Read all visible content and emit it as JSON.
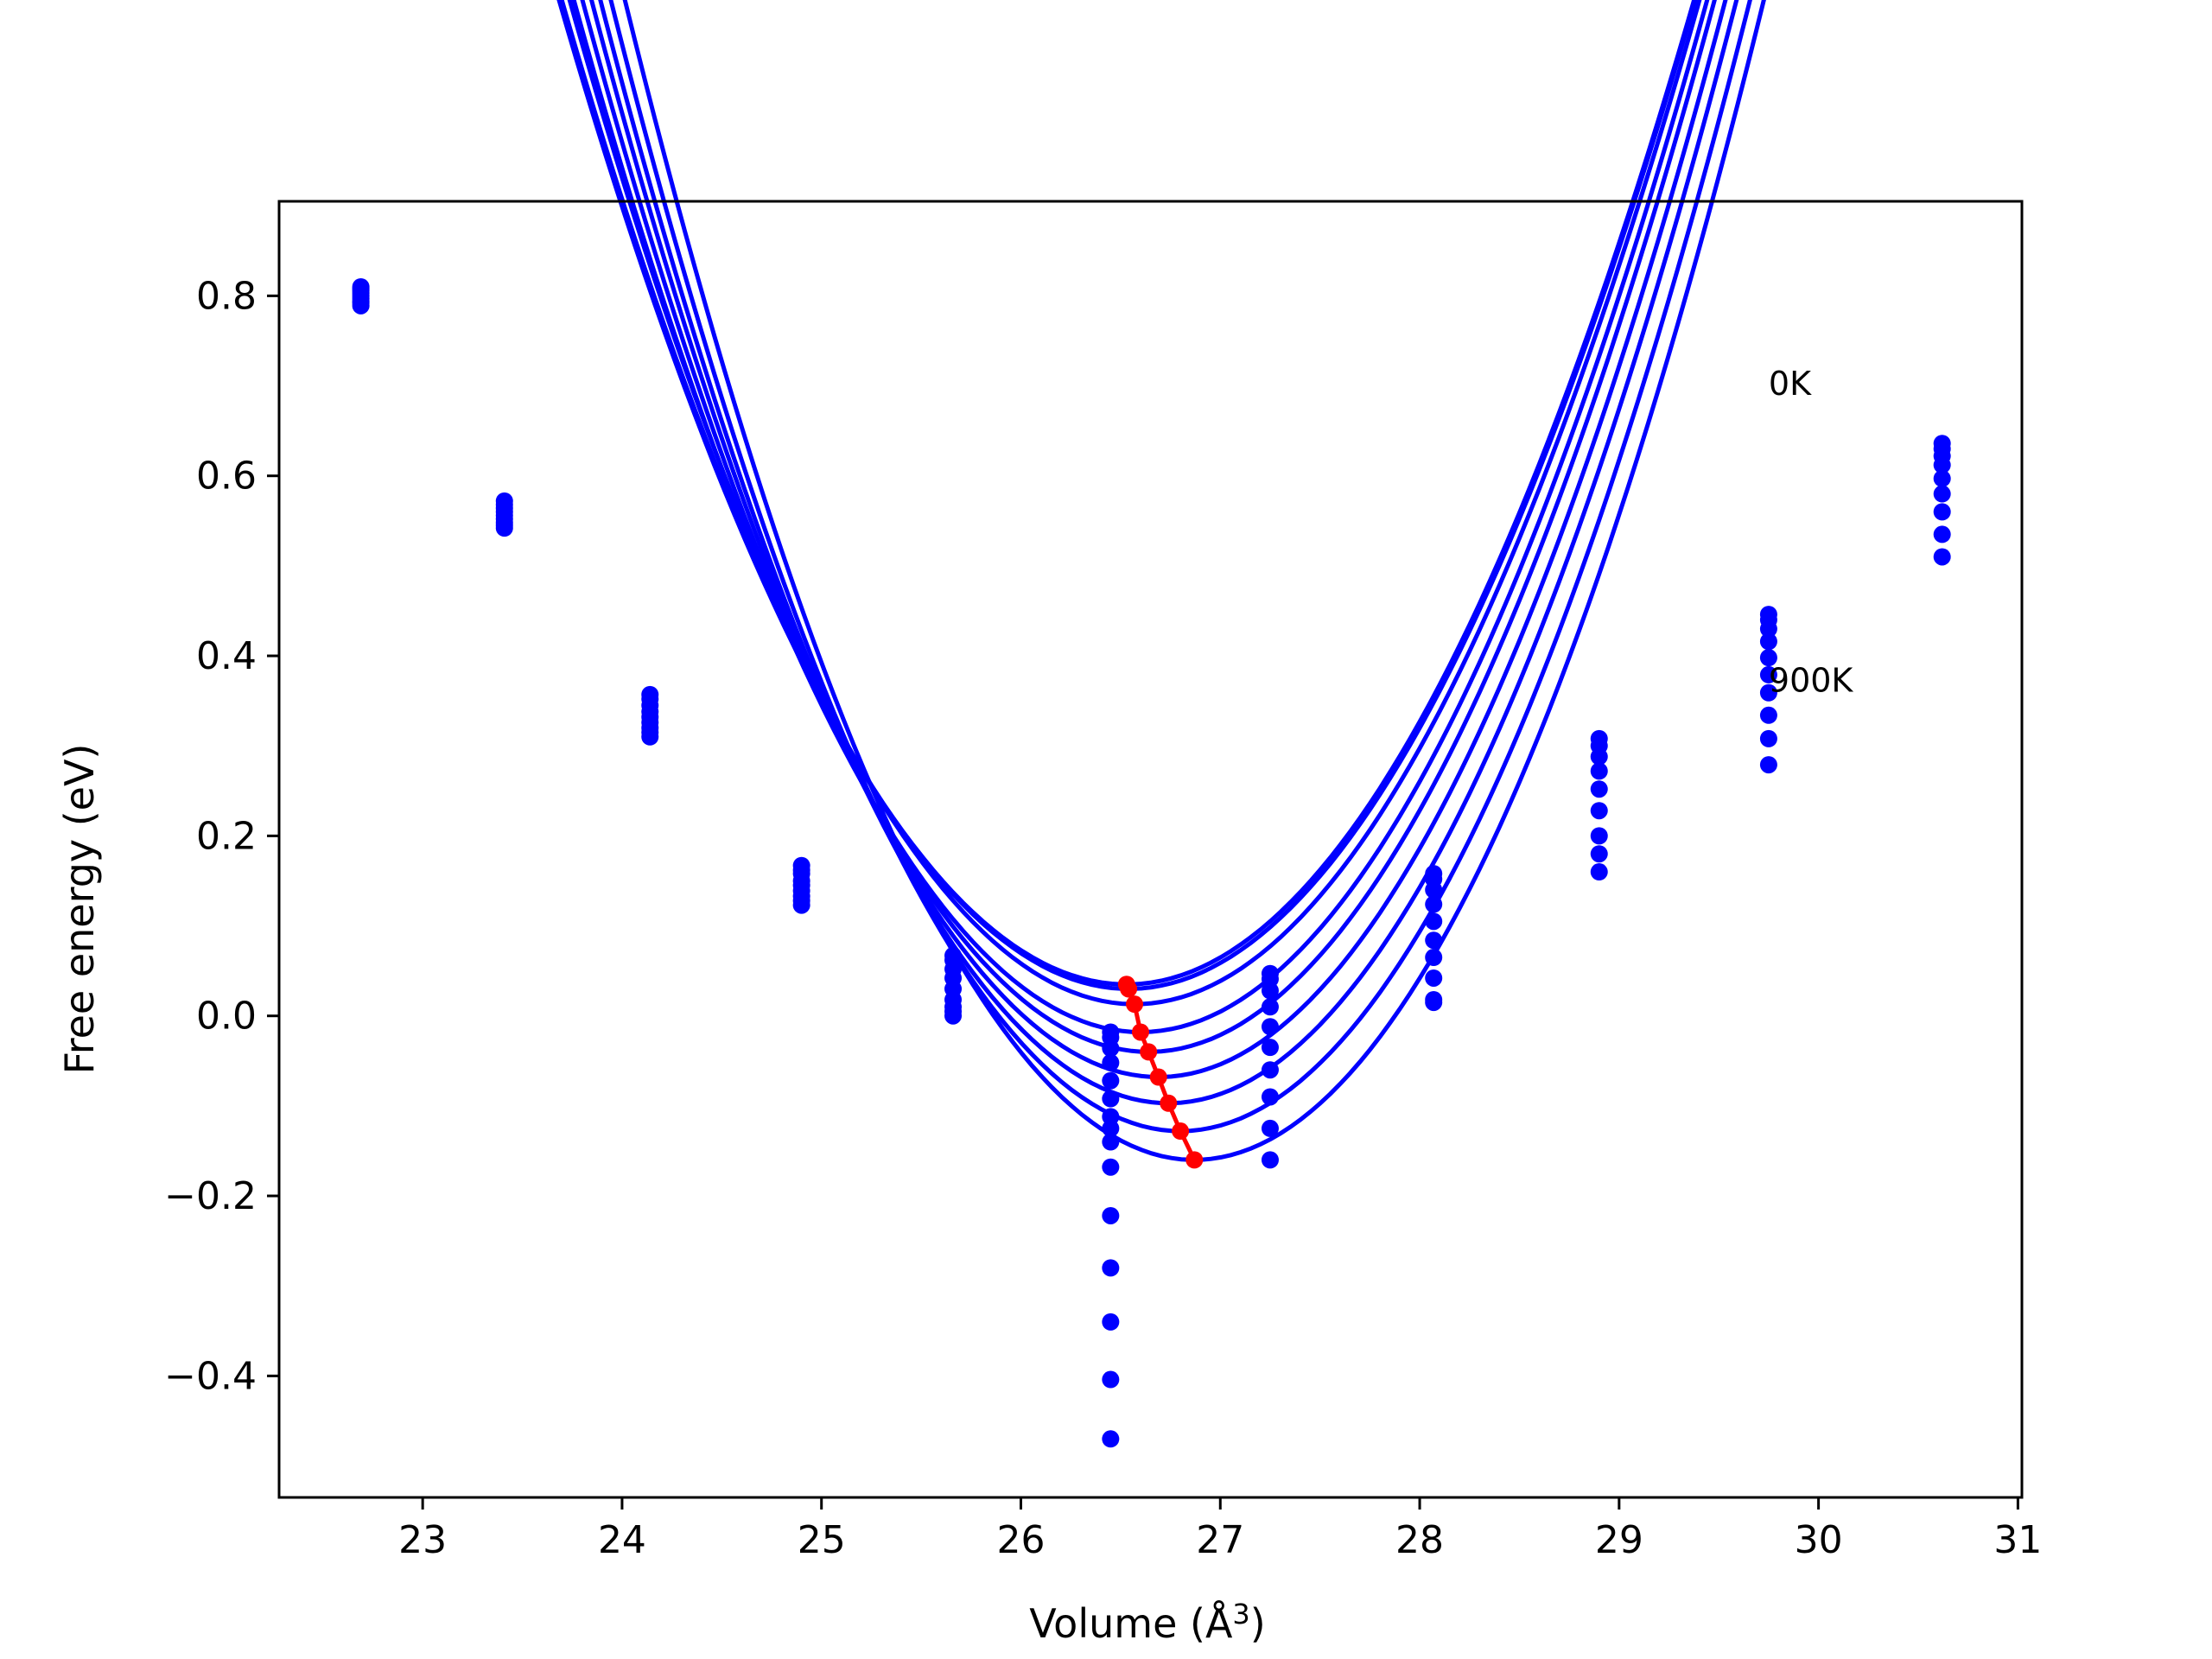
{
  "chart_data": {
    "type": "line",
    "xlabel": "Volume (",
    "xlabel_symbol": "Å",
    "xlabel_power": "3",
    "xlabel_end": ")",
    "ylabel": "Free energy (eV)",
    "xlim": [
      22.28,
      31.02
    ],
    "ylim": [
      -0.535,
      0.905
    ],
    "xticks": [
      23,
      24,
      25,
      26,
      27,
      28,
      29,
      30,
      31
    ],
    "yticks": [
      -0.4,
      -0.2,
      0.0,
      0.2,
      0.4,
      0.6,
      0.8
    ],
    "ytick_labels": [
      "−0.4",
      "−0.2",
      "0.0",
      "0.2",
      "0.4",
      "0.6",
      "0.8"
    ],
    "grid": false,
    "annotations": [
      {
        "text": "0K",
        "x": 29.75,
        "y": 0.69
      },
      {
        "text": "900K",
        "x": 29.75,
        "y": 0.36
      }
    ],
    "volumes": [
      22.69,
      23.41,
      24.14,
      24.9,
      25.66,
      26.45,
      27.25,
      28.07,
      28.9,
      29.75,
      30.62
    ],
    "fit_curves": [
      {
        "v0": 26.53,
        "e0": 0.035,
        "k": 0.135
      },
      {
        "v0": 26.54,
        "e0": 0.03,
        "k": 0.136
      },
      {
        "v0": 26.57,
        "e0": 0.013,
        "k": 0.139
      },
      {
        "v0": 26.6,
        "e0": -0.018,
        "k": 0.142
      },
      {
        "v0": 26.64,
        "e0": -0.04,
        "k": 0.145
      },
      {
        "v0": 26.69,
        "e0": -0.068,
        "k": 0.148
      },
      {
        "v0": 26.74,
        "e0": -0.097,
        "k": 0.151
      },
      {
        "v0": 26.8,
        "e0": -0.128,
        "k": 0.154
      },
      {
        "v0": 26.87,
        "e0": -0.16,
        "k": 0.158
      }
    ],
    "series_points": [
      [
        0.81,
        0.572,
        0.357,
        0.167,
        0.067,
        -0.018,
        0.047,
        0.158,
        0.308,
        0.446,
        0.636
      ],
      [
        0.808,
        0.568,
        0.352,
        0.162,
        0.062,
        -0.024,
        0.041,
        0.152,
        0.3,
        0.44,
        0.63
      ],
      [
        0.806,
        0.564,
        0.345,
        0.158,
        0.052,
        -0.036,
        0.028,
        0.14,
        0.288,
        0.43,
        0.622
      ],
      [
        0.803,
        0.56,
        0.338,
        0.15,
        0.042,
        -0.052,
        0.01,
        0.124,
        0.272,
        0.416,
        0.612
      ],
      [
        0.8,
        0.556,
        0.332,
        0.145,
        0.03,
        -0.072,
        -0.012,
        0.105,
        0.252,
        0.398,
        0.597
      ],
      [
        0.797,
        0.552,
        0.326,
        0.139,
        0.018,
        -0.092,
        -0.035,
        0.084,
        0.228,
        0.379,
        0.58
      ],
      [
        0.794,
        0.548,
        0.32,
        0.133,
        0.01,
        -0.112,
        -0.06,
        0.065,
        0.2,
        0.359,
        0.56
      ],
      [
        0.792,
        0.545,
        0.315,
        0.128,
        0.005,
        -0.125,
        -0.09,
        0.042,
        0.18,
        0.334,
        0.535
      ],
      [
        0.789,
        0.542,
        0.31,
        0.123,
        0.0,
        -0.14,
        -0.125,
        0.018,
        0.16,
        0.308,
        0.51
      ]
    ],
    "extra_points": [
      {
        "x": 26.45,
        "y": -0.168
      },
      {
        "x": 26.45,
        "y": -0.222
      },
      {
        "x": 26.45,
        "y": -0.28
      },
      {
        "x": 26.45,
        "y": -0.34
      },
      {
        "x": 26.45,
        "y": -0.404
      },
      {
        "x": 26.45,
        "y": -0.47
      },
      {
        "x": 27.25,
        "y": -0.16
      },
      {
        "x": 28.07,
        "y": 0.015
      },
      {
        "x": 29.75,
        "y": 0.279
      }
    ],
    "minima": {
      "x": [
        26.53,
        26.54,
        26.57,
        26.6,
        26.64,
        26.69,
        26.74,
        26.8,
        26.87
      ],
      "y": [
        0.035,
        0.03,
        0.013,
        -0.018,
        -0.04,
        -0.068,
        -0.097,
        -0.128,
        -0.16
      ]
    },
    "colors": {
      "curves": "#0000ff",
      "minima": "#ff0000",
      "axes": "#000000"
    }
  }
}
